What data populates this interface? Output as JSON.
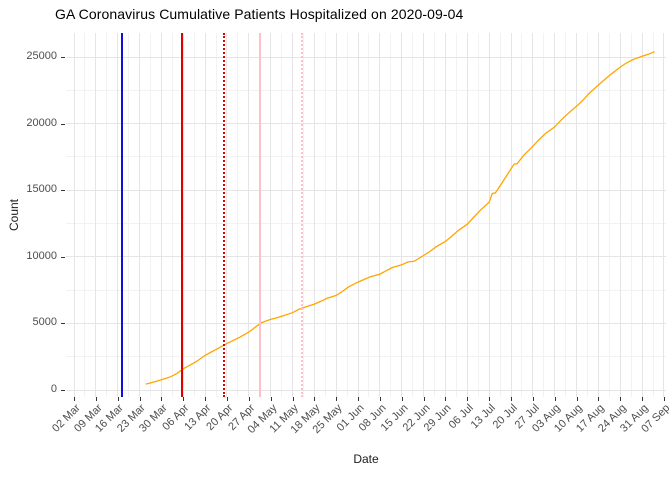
{
  "chart_data": {
    "type": "line",
    "title": "GA Coronavirus Cumulative Patients Hospitalized on 2020-09-04",
    "xlabel": "Date",
    "ylabel": "Count",
    "x_tick_labels": [
      "02 Mar",
      "09 Mar",
      "16 Mar",
      "23 Mar",
      "30 Mar",
      "06 Apr",
      "13 Apr",
      "20 Apr",
      "27 Apr",
      "04 May",
      "11 May",
      "18 May",
      "25 May",
      "01 Jun",
      "08 Jun",
      "15 Jun",
      "22 Jun",
      "29 Jun",
      "06 Jul",
      "13 Jul",
      "20 Jul",
      "27 Jul",
      "03 Aug",
      "10 Aug",
      "17 Aug",
      "24 Aug",
      "31 Aug",
      "07 Sep"
    ],
    "x_start_label_date": "2020-03-02",
    "y_ticks": [
      0,
      5000,
      10000,
      15000,
      20000,
      25000
    ],
    "y_minor_ticks": [
      2500,
      7500,
      12500,
      17500,
      22500
    ],
    "ylim": [
      0,
      26600
    ],
    "grid": "major and minor light-gray gridlines on white background, minor at mid-week and 2500-count intervals",
    "legend": "none",
    "series": [
      {
        "name": "cumulative_patients_hospitalized",
        "color": "#FFA500",
        "x_unit": "days_since_2020-03-02",
        "points": [
          [
            23,
            440
          ],
          [
            25,
            560
          ],
          [
            27,
            700
          ],
          [
            29,
            850
          ],
          [
            31,
            1000
          ],
          [
            33,
            1250
          ],
          [
            35,
            1600
          ],
          [
            37,
            1850
          ],
          [
            39,
            2100
          ],
          [
            42,
            2600
          ],
          [
            44,
            2850
          ],
          [
            46,
            3100
          ],
          [
            49,
            3500
          ],
          [
            51,
            3720
          ],
          [
            53,
            3950
          ],
          [
            56,
            4350
          ],
          [
            58,
            4700
          ],
          [
            60,
            5050
          ],
          [
            63,
            5300
          ],
          [
            65,
            5430
          ],
          [
            67,
            5580
          ],
          [
            70,
            5800
          ],
          [
            72,
            6050
          ],
          [
            74,
            6220
          ],
          [
            77,
            6450
          ],
          [
            79,
            6650
          ],
          [
            81,
            6880
          ],
          [
            84,
            7100
          ],
          [
            86,
            7400
          ],
          [
            88,
            7750
          ],
          [
            91,
            8100
          ],
          [
            93,
            8300
          ],
          [
            95,
            8500
          ],
          [
            98,
            8700
          ],
          [
            100,
            8950
          ],
          [
            102,
            9200
          ],
          [
            105,
            9400
          ],
          [
            107,
            9620
          ],
          [
            109,
            9660
          ],
          [
            112,
            10100
          ],
          [
            114,
            10400
          ],
          [
            116,
            10750
          ],
          [
            119,
            11150
          ],
          [
            121,
            11550
          ],
          [
            123,
            11950
          ],
          [
            126,
            12450
          ],
          [
            128,
            12950
          ],
          [
            130,
            13450
          ],
          [
            133,
            14100
          ],
          [
            134,
            14750
          ],
          [
            135,
            14800
          ],
          [
            137,
            15500
          ],
          [
            140,
            16600
          ],
          [
            141,
            16950
          ],
          [
            142,
            17000
          ],
          [
            144,
            17600
          ],
          [
            147,
            18300
          ],
          [
            149,
            18800
          ],
          [
            151,
            19250
          ],
          [
            154,
            19750
          ],
          [
            156,
            20250
          ],
          [
            158,
            20700
          ],
          [
            161,
            21300
          ],
          [
            163,
            21750
          ],
          [
            165,
            22250
          ],
          [
            168,
            22900
          ],
          [
            170,
            23300
          ],
          [
            172,
            23700
          ],
          [
            175,
            24250
          ],
          [
            177,
            24550
          ],
          [
            179,
            24800
          ],
          [
            182,
            25050
          ],
          [
            184,
            25200
          ],
          [
            186,
            25400
          ]
        ]
      }
    ],
    "event_markers": [
      {
        "date": "2020-03-17",
        "day": 15.5,
        "color": "#1010D8",
        "style": "solid"
      },
      {
        "date": "2020-04-04",
        "day": 34.5,
        "color": "#DF0000",
        "style": "solid"
      },
      {
        "date": "2020-04-19",
        "day": 48.2,
        "color": "#DF0000",
        "style": "dotted"
      },
      {
        "date": "2020-04-30",
        "day": 59.7,
        "color": "#FFC0CB",
        "style": "solid"
      },
      {
        "date": "2020-05-13",
        "day": 73.0,
        "color": "#FFC0CB",
        "style": "dotted"
      }
    ],
    "colors": {
      "grid_major": "#E5E5E5",
      "grid_minor": "#F2F2F2",
      "tick": "#333333",
      "tick_label": "#4D4D4D",
      "title": "#000000"
    }
  }
}
